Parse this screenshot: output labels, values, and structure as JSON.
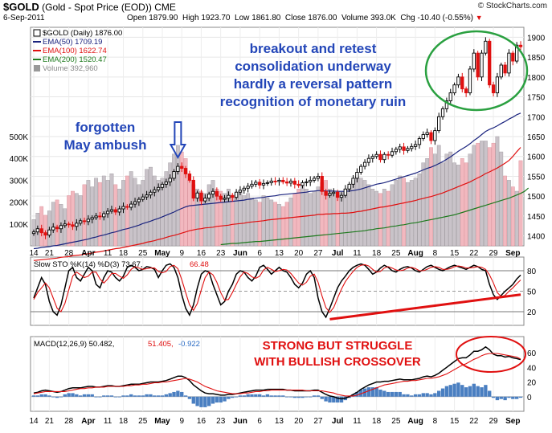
{
  "header": {
    "symbol": "$GOLD",
    "name": "(Gold - Spot Price (EOD))",
    "exchange": "CME",
    "date": "6-Sep-2011",
    "open_label": "Open",
    "open": "1879.90",
    "high_label": "High",
    "high": "1923.70",
    "low_label": "Low",
    "low": "1861.80",
    "close_label": "Close",
    "close": "1876.00",
    "volume_label": "Volume",
    "volume": "393.0K",
    "chg_label": "Chg",
    "chg": "-10.40 (-0.55%)",
    "brand": "© StockCharts.com"
  },
  "legend": [
    {
      "label": "$GOLD (Daily) 1876.00",
      "color": "#000000"
    },
    {
      "label": "EMA(50) 1709.19",
      "color": "#1a237e"
    },
    {
      "label": "EMA(100) 1622.74",
      "color": "#e01010"
    },
    {
      "label": "EMA(200) 1520.47",
      "color": "#1e7a1e"
    },
    {
      "label": "Volume 392,960",
      "color": "#888888"
    }
  ],
  "annotations": {
    "breakout": [
      "breakout and retest",
      "consolidation underway",
      "hardly a reversal pattern",
      "recognition of monetary ruin"
    ],
    "forgotten": [
      "forgotten",
      "May ambush"
    ],
    "strong": [
      "STRONG BUT STRUGGLE",
      "WITH BULLISH CROSSOVER"
    ]
  },
  "sto_header": {
    "label": "Slow STO %K(14) %D(3)",
    "k": "73.67",
    "d": "66.48"
  },
  "macd_header": {
    "label": "MACD(12,26,9)",
    "macd": "50.482",
    "signal": "51.405",
    "hist": "-0.922"
  },
  "colors": {
    "up": "#000000",
    "down": "#e01010",
    "ema50": "#1a237e",
    "ema100": "#e01010",
    "ema200": "#1e7a1e",
    "vol_up": "#c9c3c9",
    "vol_down": "#f2b8bf",
    "macd_hist": "#4a7fc1",
    "annot_blue": "#2346b8",
    "annot_red": "#e01010",
    "oval": "#2aa040",
    "trend": "#e01010"
  },
  "chart_data": [
    {
      "type": "candlestick",
      "title": "$GOLD (Gold - Spot Price (EOD)) CME",
      "y_ticks": [
        1400,
        1450,
        1500,
        1550,
        1600,
        1650,
        1700,
        1750,
        1800,
        1850,
        1900
      ],
      "ylim": [
        1375,
        1925
      ],
      "volume_ticks": [
        "100K",
        "200K",
        "300K",
        "400K",
        "500K"
      ],
      "x_labels": [
        "14",
        "21",
        "28",
        "Apr",
        "11",
        "18",
        "25",
        "May",
        "9",
        "16",
        "23",
        "Jun",
        "6",
        "13",
        "20",
        "27",
        "Jul",
        "11",
        "18",
        "25",
        "Aug",
        "8",
        "15",
        "22",
        "29",
        "Sep"
      ],
      "close": [
        1410,
        1418,
        1408,
        1402,
        1415,
        1422,
        1418,
        1426,
        1430,
        1428,
        1424,
        1432,
        1438,
        1436,
        1442,
        1446,
        1450,
        1448,
        1456,
        1462,
        1466,
        1460,
        1468,
        1474,
        1472,
        1480,
        1486,
        1492,
        1498,
        1503,
        1510,
        1516,
        1522,
        1530,
        1536,
        1545,
        1562,
        1575,
        1570,
        1556,
        1540,
        1495,
        1508,
        1488,
        1495,
        1505,
        1512,
        1500,
        1492,
        1495,
        1502,
        1497,
        1510,
        1515,
        1520,
        1525,
        1530,
        1535,
        1528,
        1532,
        1534,
        1538,
        1537,
        1540,
        1536,
        1533,
        1538,
        1530,
        1527,
        1534,
        1536,
        1540,
        1545,
        1550,
        1512,
        1502,
        1507,
        1510,
        1497,
        1502,
        1518,
        1530,
        1545,
        1560,
        1575,
        1585,
        1595,
        1600,
        1605,
        1592,
        1605,
        1603,
        1612,
        1618,
        1624,
        1615,
        1620,
        1625,
        1630,
        1645,
        1655,
        1660,
        1640,
        1665,
        1700,
        1720,
        1740,
        1760,
        1780,
        1800,
        1770,
        1760,
        1820,
        1860,
        1800,
        1860,
        1890,
        1780,
        1760,
        1800,
        1830,
        1810,
        1860,
        1840,
        1880,
        1876
      ],
      "volume": [
        120,
        150,
        180,
        140,
        160,
        200,
        210,
        190,
        170,
        230,
        250,
        240,
        230,
        280,
        300,
        270,
        310,
        290,
        320,
        300,
        330,
        280,
        260,
        300,
        320,
        340,
        310,
        280,
        300,
        350,
        360,
        320,
        300,
        310,
        340,
        380,
        420,
        460,
        430,
        400,
        300,
        280,
        260,
        250,
        240,
        280,
        300,
        260,
        250,
        240,
        260,
        220,
        240,
        250,
        230,
        240,
        220,
        210,
        200,
        230,
        220,
        210,
        200,
        190,
        180,
        200,
        220,
        240,
        260,
        280,
        260,
        240,
        250,
        270,
        290,
        300,
        260,
        240,
        230,
        250,
        260,
        270,
        300,
        320,
        310,
        300,
        280,
        260,
        250,
        240,
        260,
        250,
        280,
        300,
        320,
        310,
        290,
        300,
        310,
        330,
        380,
        400,
        450,
        420,
        460,
        380,
        420,
        430,
        380,
        370,
        400,
        380,
        420,
        460,
        470,
        480,
        480,
        450,
        470,
        500,
        430,
        320,
        300,
        270,
        250,
        390
      ],
      "ema50": [
        1368,
        1369,
        1371,
        1372,
        1373,
        1375,
        1376,
        1378,
        1380,
        1382,
        1384,
        1386,
        1388,
        1390,
        1392,
        1395,
        1397,
        1400,
        1402,
        1405,
        1408,
        1410,
        1413,
        1416,
        1418,
        1421,
        1424,
        1427,
        1431,
        1434,
        1437,
        1441,
        1444,
        1448,
        1452,
        1456,
        1460,
        1465,
        1469,
        1473,
        1476,
        1477,
        1478,
        1479,
        1480,
        1481,
        1482,
        1483,
        1484,
        1485,
        1486,
        1487,
        1488,
        1489,
        1490,
        1492,
        1493,
        1495,
        1496,
        1497,
        1499,
        1500,
        1501,
        1503,
        1504,
        1505,
        1506,
        1507,
        1508,
        1509,
        1510,
        1512,
        1513,
        1514,
        1514,
        1513,
        1513,
        1513,
        1512,
        1512,
        1512,
        1513,
        1514,
        1516,
        1518,
        1521,
        1524,
        1527,
        1530,
        1532,
        1534,
        1537,
        1540,
        1543,
        1546,
        1549,
        1552,
        1555,
        1558,
        1562,
        1566,
        1570,
        1573,
        1577,
        1582,
        1587,
        1593,
        1599,
        1606,
        1613,
        1619,
        1625,
        1632,
        1640,
        1647,
        1655,
        1663,
        1668,
        1672,
        1677,
        1683,
        1688,
        1694,
        1699,
        1705,
        1709
      ],
      "ema100": [
        1338,
        1339,
        1340,
        1341,
        1342,
        1343,
        1344,
        1346,
        1347,
        1348,
        1350,
        1351,
        1352,
        1354,
        1355,
        1357,
        1359,
        1360,
        1362,
        1364,
        1366,
        1368,
        1369,
        1371,
        1373,
        1375,
        1377,
        1379,
        1381,
        1384,
        1386,
        1388,
        1391,
        1393,
        1396,
        1399,
        1401,
        1404,
        1407,
        1410,
        1413,
        1415,
        1417,
        1418,
        1420,
        1421,
        1422,
        1424,
        1425,
        1426,
        1427,
        1429,
        1430,
        1431,
        1432,
        1434,
        1435,
        1436,
        1437,
        1438,
        1440,
        1441,
        1442,
        1443,
        1444,
        1445,
        1446,
        1447,
        1448,
        1449,
        1450,
        1451,
        1452,
        1454,
        1454,
        1455,
        1455,
        1456,
        1456,
        1457,
        1457,
        1458,
        1459,
        1461,
        1462,
        1464,
        1466,
        1468,
        1470,
        1472,
        1473,
        1475,
        1477,
        1479,
        1481,
        1483,
        1485,
        1487,
        1489,
        1492,
        1494,
        1497,
        1499,
        1502,
        1505,
        1508,
        1512,
        1516,
        1520,
        1524,
        1528,
        1532,
        1536,
        1541,
        1546,
        1551,
        1557,
        1561,
        1566,
        1571,
        1577,
        1583,
        1590,
        1600,
        1612,
        1622.74
      ],
      "ema200_start_index": 48,
      "ema200": [
        1378,
        1379,
        1380,
        1381,
        1381,
        1382,
        1383,
        1384,
        1385,
        1386,
        1386,
        1387,
        1388,
        1389,
        1390,
        1391,
        1392,
        1393,
        1394,
        1395,
        1396,
        1397,
        1398,
        1399,
        1400,
        1401,
        1402,
        1403,
        1404,
        1405,
        1406,
        1407,
        1408,
        1409,
        1410,
        1411,
        1412,
        1413,
        1415,
        1416,
        1418,
        1419,
        1420,
        1422,
        1424,
        1425,
        1427,
        1428,
        1430,
        1432,
        1433,
        1435,
        1437,
        1439,
        1441,
        1443,
        1445,
        1447,
        1449,
        1451,
        1453,
        1456,
        1459,
        1462,
        1465,
        1468,
        1471,
        1474,
        1477,
        1480,
        1483,
        1486,
        1489,
        1492,
        1495,
        1499,
        1503,
        1507,
        1512,
        1520.47
      ]
    },
    {
      "type": "line",
      "title": "Slow STO %K(14) %D(3)",
      "ylim": [
        0,
        100
      ],
      "y_ticks": [
        20,
        50,
        80
      ],
      "series": [
        {
          "name": "%K",
          "color": "#000000",
          "values": [
            40,
            55,
            70,
            60,
            35,
            20,
            15,
            30,
            55,
            80,
            85,
            70,
            65,
            75,
            85,
            80,
            60,
            55,
            70,
            80,
            78,
            70,
            65,
            72,
            85,
            88,
            85,
            80,
            82,
            86,
            85,
            82,
            70,
            80,
            88,
            90,
            85,
            70,
            45,
            25,
            15,
            30,
            55,
            75,
            80,
            78,
            60,
            45,
            30,
            35,
            50,
            60,
            75,
            80,
            78,
            70,
            65,
            72,
            85,
            88,
            82,
            75,
            80,
            85,
            80,
            78,
            70,
            60,
            55,
            62,
            75,
            80,
            70,
            40,
            20,
            12,
            25,
            40,
            55,
            65,
            72,
            80,
            85,
            88,
            90,
            88,
            82,
            75,
            78,
            84,
            88,
            85,
            80,
            78,
            82,
            85,
            86,
            84,
            80,
            78,
            82,
            86,
            88,
            85,
            82,
            80,
            83,
            86,
            88,
            86,
            84,
            82,
            85,
            88,
            86,
            82,
            80,
            60,
            45,
            38,
            44,
            50,
            55,
            60,
            68,
            73.67
          ]
        },
        {
          "name": "%D",
          "color": "#e01010",
          "values": [
            38,
            48,
            55,
            62,
            55,
            40,
            25,
            20,
            32,
            52,
            72,
            78,
            74,
            70,
            72,
            78,
            78,
            68,
            62,
            68,
            76,
            76,
            72,
            69,
            74,
            82,
            86,
            84,
            82,
            83,
            84,
            84,
            79,
            77,
            79,
            86,
            88,
            83,
            67,
            48,
            30,
            22,
            32,
            52,
            70,
            78,
            74,
            63,
            48,
            37,
            38,
            48,
            60,
            71,
            78,
            76,
            71,
            69,
            72,
            81,
            85,
            82,
            79,
            80,
            82,
            81,
            76,
            69,
            62,
            59,
            63,
            72,
            75,
            63,
            43,
            26,
            19,
            26,
            40,
            53,
            64,
            72,
            79,
            85,
            88,
            89,
            87,
            82,
            78,
            79,
            84,
            86,
            84,
            81,
            80,
            81,
            84,
            85,
            83,
            80,
            80,
            82,
            85,
            86,
            85,
            82,
            82,
            83,
            86,
            87,
            86,
            84,
            84,
            85,
            86,
            85,
            82,
            74,
            62,
            48,
            42,
            44,
            50,
            55,
            61,
            66.48
          ]
        }
      ],
      "trendline": [
        [
          76,
          9
        ],
        [
          125,
          45
        ]
      ]
    },
    {
      "type": "line",
      "title": "MACD(12,26,9)",
      "y_ticks": [
        0,
        20,
        40,
        60
      ],
      "series": [
        {
          "name": "MACD",
          "color": "#000000",
          "values": [
            5,
            6,
            8,
            9,
            8,
            7,
            6,
            7,
            9,
            11,
            12,
            12,
            12,
            13,
            14,
            14,
            13,
            13,
            14,
            15,
            15,
            14,
            14,
            15,
            16,
            17,
            17,
            17,
            18,
            19,
            20,
            20,
            20,
            21,
            22,
            24,
            26,
            28,
            28,
            26,
            22,
            16,
            12,
            8,
            5,
            4,
            4,
            3,
            2,
            2,
            3,
            3,
            4,
            5,
            6,
            7,
            8,
            9,
            9,
            9,
            10,
            10,
            10,
            10,
            10,
            9,
            9,
            8,
            8,
            8,
            8,
            8,
            9,
            9,
            6,
            3,
            1,
            0,
            -2,
            -3,
            -2,
            0,
            3,
            6,
            10,
            13,
            16,
            18,
            20,
            20,
            21,
            21,
            22,
            23,
            24,
            23,
            23,
            23,
            24,
            25,
            27,
            28,
            27,
            29,
            32,
            36,
            40,
            44,
            48,
            52,
            53,
            53,
            57,
            62,
            62,
            64,
            68,
            64,
            58,
            56,
            56,
            54,
            55,
            53,
            52,
            50.482
          ]
        },
        {
          "name": "Signal",
          "color": "#e01010",
          "values": [
            4,
            5,
            6,
            7,
            7,
            7,
            7,
            7,
            7,
            8,
            9,
            10,
            11,
            11,
            12,
            12,
            13,
            13,
            13,
            14,
            14,
            14,
            14,
            14,
            15,
            15,
            16,
            16,
            17,
            17,
            18,
            19,
            19,
            20,
            20,
            21,
            22,
            23,
            24,
            25,
            24,
            22,
            20,
            17,
            14,
            12,
            10,
            8,
            7,
            6,
            5,
            4,
            4,
            4,
            5,
            5,
            6,
            7,
            7,
            8,
            8,
            9,
            9,
            9,
            9,
            9,
            9,
            9,
            9,
            9,
            8,
            8,
            8,
            8,
            8,
            7,
            6,
            5,
            3,
            2,
            1,
            1,
            1,
            2,
            4,
            6,
            8,
            10,
            12,
            14,
            16,
            17,
            18,
            19,
            20,
            21,
            21,
            22,
            22,
            23,
            24,
            25,
            25,
            26,
            27,
            29,
            31,
            34,
            37,
            40,
            43,
            45,
            48,
            51,
            53,
            56,
            58,
            59,
            59,
            59,
            58,
            57,
            56,
            55,
            54,
            51.405
          ]
        }
      ],
      "histogram_color": "#4a7fc1"
    }
  ]
}
